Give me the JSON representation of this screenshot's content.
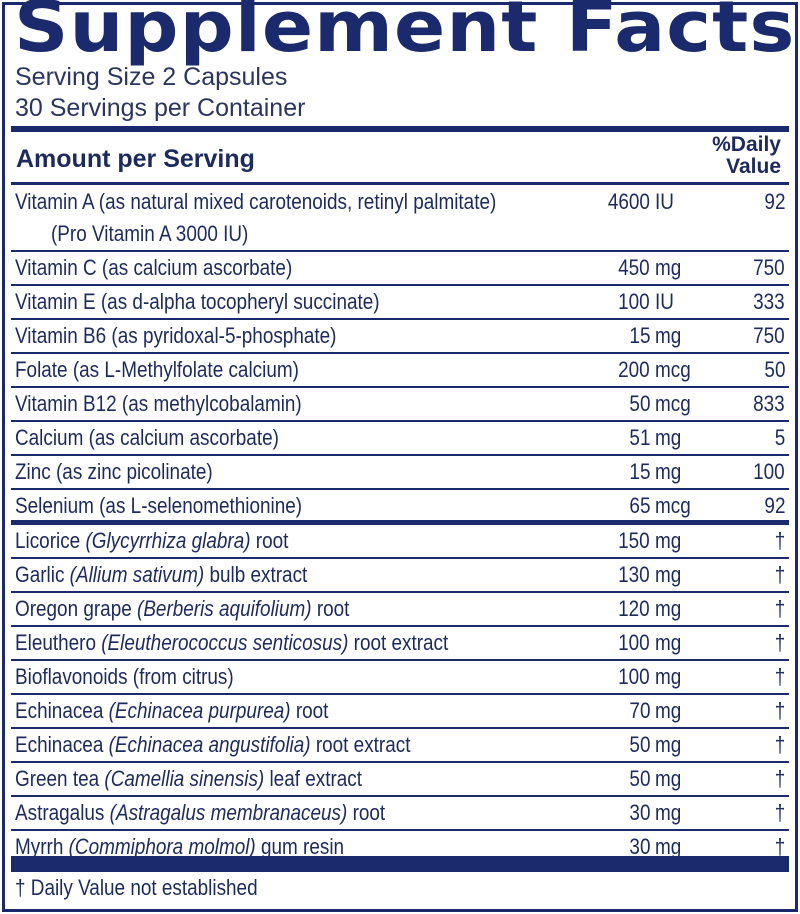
{
  "title": "Supplement Facts",
  "serving_size": "Serving Size 2 Capsules",
  "servings_per_container": "30 Servings per Container",
  "header": {
    "amount": "Amount per Serving",
    "dv_line1": "%Daily",
    "dv_line2": "Value"
  },
  "vitamins": [
    {
      "name": "Vitamin A (as natural mixed carotenoids, retinyl palmitate)",
      "sub": "(Pro Vitamin A 3000 IU)",
      "amount": "4600",
      "unit": "IU",
      "dv": "92"
    },
    {
      "name": "Vitamin C (as calcium ascorbate)",
      "amount": "450",
      "unit": "mg",
      "dv": "750"
    },
    {
      "name": "Vitamin E (as d-alpha tocopheryl succinate)",
      "amount": "100",
      "unit": "IU",
      "dv": "333"
    },
    {
      "name": "Vitamin B6 (as pyridoxal-5-phosphate)",
      "amount": "15",
      "unit": "mg",
      "dv": "750"
    },
    {
      "name": "Folate (as L-Methylfolate calcium)",
      "amount": "200",
      "unit": "mcg",
      "dv": "50"
    },
    {
      "name": "Vitamin B12 (as methylcobalamin)",
      "amount": "50",
      "unit": "mcg",
      "dv": "833"
    },
    {
      "name": "Calcium (as calcium ascorbate)",
      "amount": "51",
      "unit": "mg",
      "dv": "5"
    },
    {
      "name": "Zinc (as zinc picolinate)",
      "amount": "15",
      "unit": "mg",
      "dv": "100"
    },
    {
      "name": "Selenium (as L-selenomethionine)",
      "amount": "65",
      "unit": "mcg",
      "dv": "92"
    }
  ],
  "botanicals": [
    {
      "name": "Licorice ",
      "latin": "(Glycyrrhiza glabra)",
      "part": " root",
      "amount": "150",
      "unit": "mg",
      "dv": "†"
    },
    {
      "name": "Garlic ",
      "latin": "(Allium sativum)",
      "part": " bulb extract",
      "amount": "130",
      "unit": "mg",
      "dv": "†"
    },
    {
      "name": "Oregon grape ",
      "latin": "(Berberis aquifolium)",
      "part": " root",
      "amount": "120",
      "unit": "mg",
      "dv": "†"
    },
    {
      "name": "Eleuthero ",
      "latin": "(Eleutherococcus senticosus)",
      "part": " root extract",
      "amount": "100",
      "unit": "mg",
      "dv": "†"
    },
    {
      "name": "Bioflavonoids (from citrus)",
      "latin": "",
      "part": "",
      "amount": "100",
      "unit": "mg",
      "dv": "†"
    },
    {
      "name": "Echinacea ",
      "latin": "(Echinacea purpurea)",
      "part": " root",
      "amount": "70",
      "unit": "mg",
      "dv": "†"
    },
    {
      "name": "Echinacea ",
      "latin": "(Echinacea angustifolia)",
      "part": " root extract",
      "amount": "50",
      "unit": "mg",
      "dv": "†"
    },
    {
      "name": "Green tea ",
      "latin": "(Camellia sinensis)",
      "part": " leaf extract",
      "amount": "50",
      "unit": "mg",
      "dv": "†"
    },
    {
      "name": "Astragalus ",
      "latin": "(Astragalus membranaceus)",
      "part": " root",
      "amount": "30",
      "unit": "mg",
      "dv": "†"
    },
    {
      "name": "Myrrh ",
      "latin": "(Commiphora molmol)",
      "part": " gum resin",
      "amount": "30",
      "unit": "mg",
      "dv": "†"
    }
  ],
  "footnote": "† Daily Value not established",
  "colors": {
    "navy": "#1a2a6c",
    "text": "#1c2a5e"
  }
}
